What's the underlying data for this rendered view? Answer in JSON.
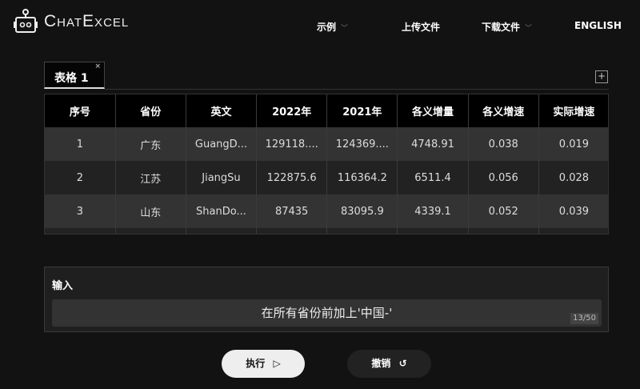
{
  "header": {
    "logo": "ChatExcel",
    "nav": [
      {
        "label": "示例",
        "dropdown": true
      },
      {
        "label": "上传文件"
      },
      {
        "label": "下载文件",
        "dropdown": true
      },
      {
        "label": "ENGLISH"
      }
    ]
  },
  "tabs": [
    {
      "label": "表格 1",
      "close": "×"
    }
  ],
  "add_tab": "+",
  "table": {
    "columns": [
      "序号",
      "省份",
      "英文",
      "2022年",
      "2021年",
      "各义增量",
      "各义增速",
      "实际增速"
    ],
    "rows": [
      [
        "1",
        "广东",
        "GuangD...",
        "129118....",
        "124369....",
        "4748.91",
        "0.038",
        "0.019"
      ],
      [
        "2",
        "江苏",
        "JiangSu",
        "122875.6",
        "116364.2",
        "6511.4",
        "0.056",
        "0.028"
      ],
      [
        "3",
        "山东",
        "ShanDo...",
        "87435",
        "83095.9",
        "4339.1",
        "0.052",
        "0.039"
      ],
      [
        "",
        "",
        "",
        "",
        "",
        "",
        "",
        ""
      ]
    ]
  },
  "input": {
    "label": "输入",
    "value": "在所有省份前加上'中国-'",
    "count": "13/50"
  },
  "buttons": {
    "execute": "执行",
    "execute_icon": "▷",
    "undo": "撤销",
    "undo_icon": "↺"
  }
}
